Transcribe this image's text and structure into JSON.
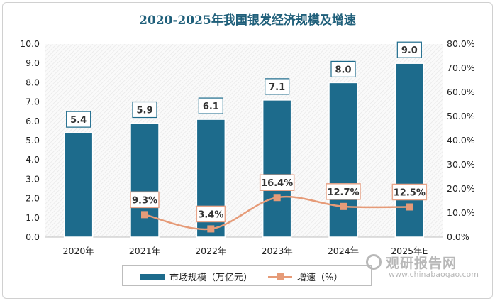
{
  "title": "2020-2025年我国银发经济规模及增速",
  "colors": {
    "bar": "#1d6b8c",
    "line": "#e69b78",
    "title": "#1f5f7a"
  },
  "chart_data": {
    "type": "bar",
    "categories": [
      "2020年",
      "2021年",
      "2022年",
      "2023年",
      "2024年",
      "2025年E"
    ],
    "series": [
      {
        "name": "市场规模（万亿元）",
        "type": "bar",
        "axis": "left",
        "values": [
          5.4,
          5.9,
          6.1,
          7.1,
          8.0,
          9.0
        ],
        "labels": [
          "5.4",
          "5.9",
          "6.1",
          "7.1",
          "8.0",
          "9.0"
        ]
      },
      {
        "name": "增速（%）",
        "type": "line",
        "axis": "right",
        "values": [
          null,
          9.3,
          3.4,
          16.4,
          12.7,
          12.5
        ],
        "labels": [
          "",
          "9.3%",
          "3.4%",
          "16.4%",
          "12.7%",
          "12.5%"
        ]
      }
    ],
    "ylim_left": [
      0,
      10
    ],
    "ylim_right": [
      0,
      80
    ],
    "yticks_left": [
      "0.0",
      "1.0",
      "2.0",
      "3.0",
      "4.0",
      "5.0",
      "6.0",
      "7.0",
      "8.0",
      "9.0",
      "10.0"
    ],
    "yticks_right": [
      "0.0%",
      "10.0%",
      "20.0%",
      "30.0%",
      "40.0%",
      "50.0%",
      "60.0%",
      "70.0%",
      "80.0%"
    ],
    "legend_position": "bottom"
  },
  "legend": {
    "bar_label": "市场规模（万亿元）",
    "line_label": "增速（%）"
  },
  "watermark": {
    "brand": "观研报告网",
    "url": "www.chinabaogao.com"
  }
}
